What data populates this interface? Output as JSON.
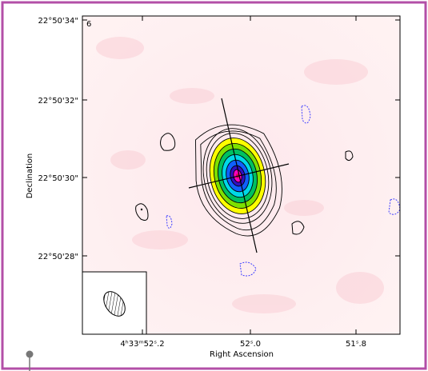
{
  "figure": {
    "panel_label": "6",
    "x_axis_label": "Right Ascension",
    "y_axis_label": "Declination",
    "x_ticks": [
      "4ʰ33ᵐ52ˢ.2",
      "52ˢ.0",
      "51ˢ.8"
    ],
    "y_ticks": [
      "22°50'34\"",
      "22°50'32\"",
      "22°50'30\"",
      "22°50'28\""
    ]
  }
}
